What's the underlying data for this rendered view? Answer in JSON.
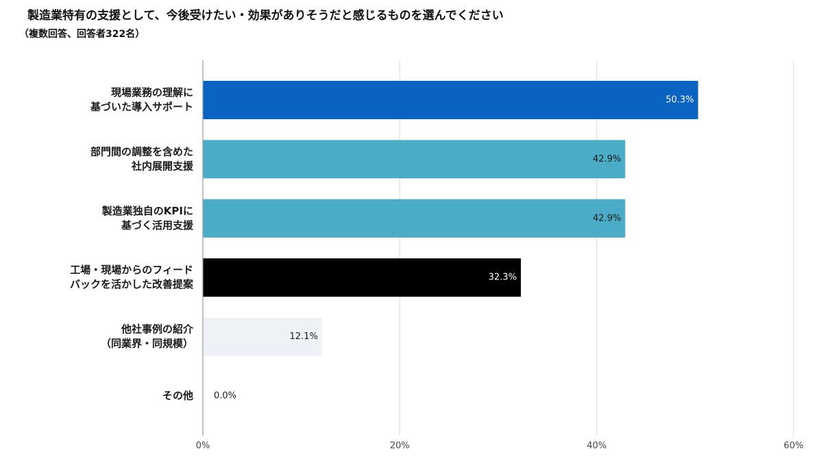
{
  "chart_data": {
    "type": "bar",
    "orientation": "horizontal",
    "title": "製造業特有の支援として、今後受けたい・効果がありそうだと感じるものを選んでください",
    "subtitle": "（複数回答、回答者322名）",
    "categories": [
      [
        "現場業務の理解に",
        "基づいた導入サポート"
      ],
      [
        "部門間の調整を含めた",
        "社内展開支援"
      ],
      [
        "製造業独自のKPIに",
        "基づく活用支援"
      ],
      [
        "工場・現場からのフィード",
        "バックを活かした改善提案"
      ],
      [
        "他社事例の紹介",
        "（同業界・同規模）"
      ],
      [
        "その他"
      ]
    ],
    "values": [
      50.3,
      42.9,
      42.9,
      32.3,
      12.1,
      0.0
    ],
    "value_labels": [
      "50.3%",
      "42.9%",
      "42.9%",
      "32.3%",
      "12.1%",
      "0.0%"
    ],
    "colors": [
      "#0a62c1",
      "#4aacc6",
      "#4aacc6",
      "#000000",
      "#eef2f7",
      "#eef2f7"
    ],
    "label_colors": [
      "#ffffff",
      "#1a1a1a",
      "#1a1a1a",
      "#ffffff",
      "#1a1a1a",
      "#1a1a1a"
    ],
    "xlim": [
      0,
      60
    ],
    "xticks": [
      0,
      20,
      40,
      60
    ],
    "xtick_labels": [
      "0%",
      "20%",
      "40%",
      "60%"
    ],
    "xlabel": "",
    "ylabel": "",
    "grid": true,
    "legend": "none"
  }
}
